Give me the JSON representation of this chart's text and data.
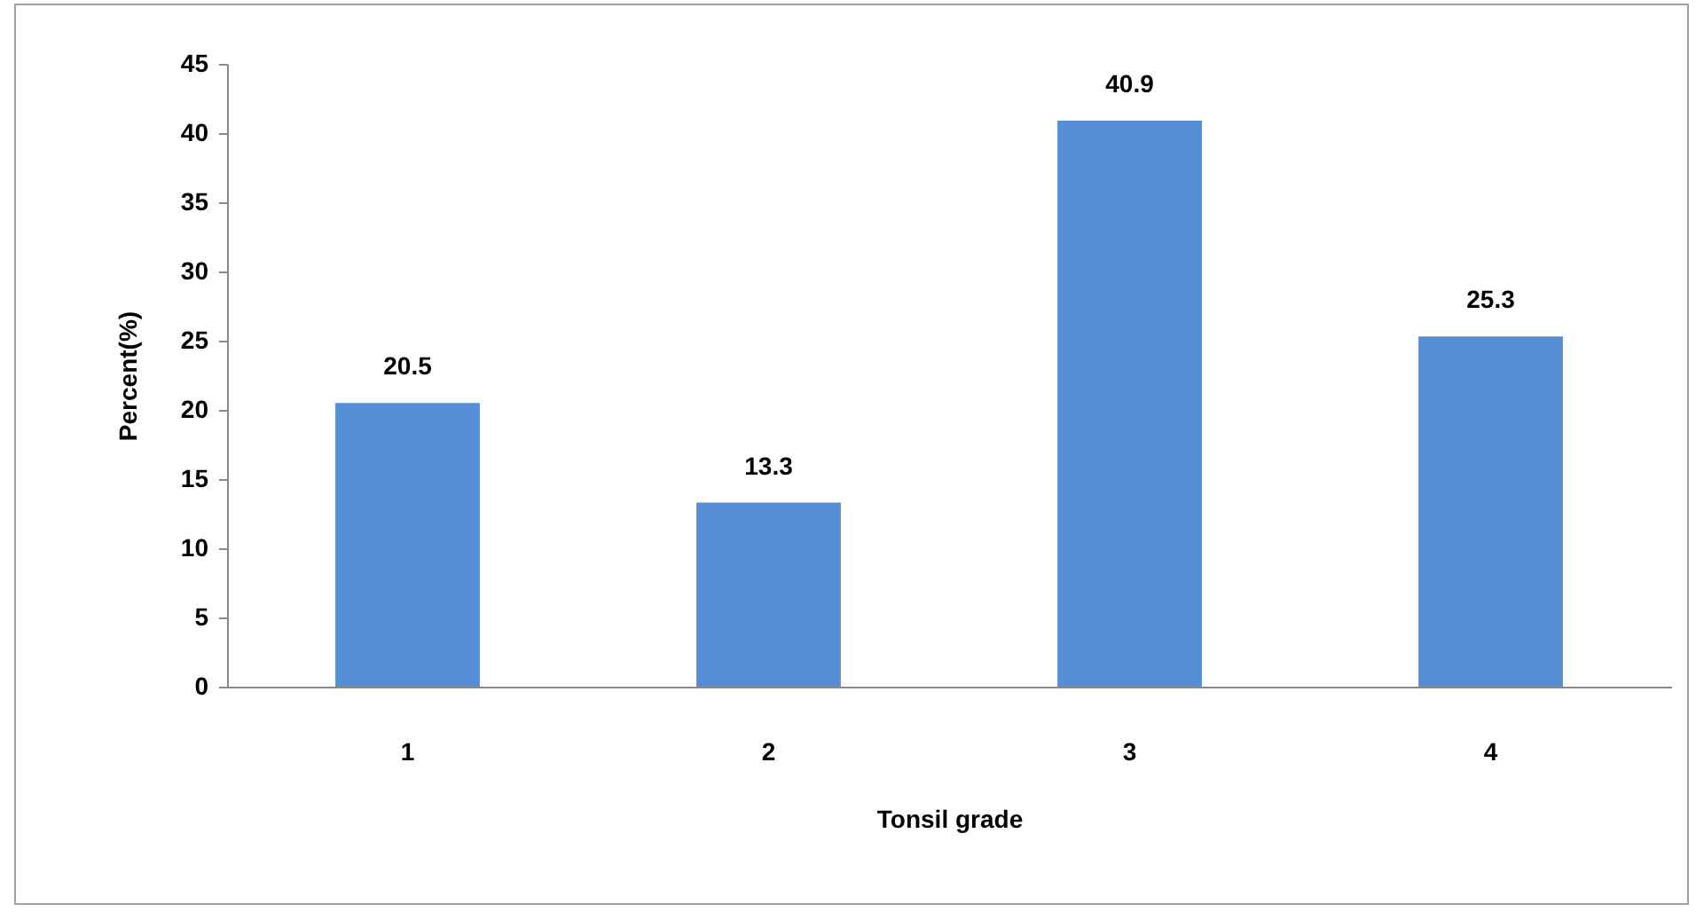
{
  "chart_data": {
    "type": "bar",
    "xlabel": "Tonsil grade",
    "ylabel": "Percent(%)",
    "categories": [
      "1",
      "2",
      "3",
      "4"
    ],
    "values": [
      20.5,
      13.3,
      40.9,
      25.3
    ],
    "color": "#558ed5",
    "ylim": [
      0,
      45
    ],
    "yticks": [
      0,
      5,
      10,
      15,
      20,
      25,
      30,
      35,
      40,
      45
    ],
    "grid": false,
    "data_labels": true
  }
}
